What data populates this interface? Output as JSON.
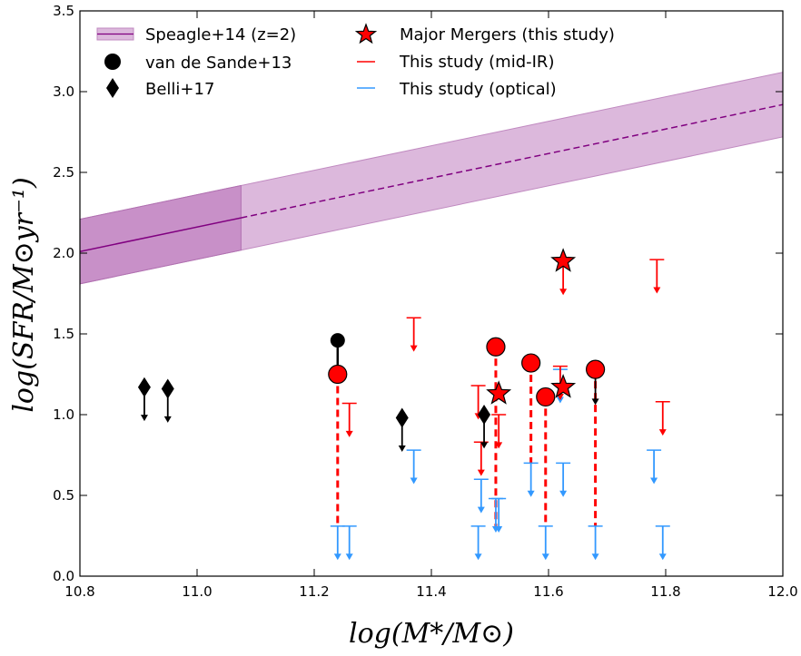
{
  "chart_data": {
    "type": "scatter",
    "title": "",
    "xlabel": "log(M*/M⊙)",
    "ylabel": "log(SFR/M⊙yr⁻¹)",
    "xlim": [
      10.8,
      12.0
    ],
    "ylim": [
      0.0,
      3.5
    ],
    "xticks": [
      "10.8",
      "11.0",
      "11.2",
      "11.4",
      "11.6",
      "11.8",
      "12.0"
    ],
    "yticks": [
      "0.0",
      "0.5",
      "1.0",
      "1.5",
      "2.0",
      "2.5",
      "3.0",
      "3.5"
    ],
    "grid": false,
    "legend_position": "top-left",
    "legend": [
      {
        "label": "Speagle+14 (z=2)",
        "marker": "band"
      },
      {
        "label": "van de Sande+13",
        "marker": "circle"
      },
      {
        "label": "Belli+17",
        "marker": "diamond"
      },
      {
        "label": "Major Mergers (this study)",
        "marker": "star"
      },
      {
        "label": "This study (mid-IR)",
        "marker": "red-line"
      },
      {
        "label": "This study (optical)",
        "marker": "blue-line"
      }
    ],
    "colors": {
      "main_sequence": "#800080",
      "band_light": "#dcb8dc",
      "band_dark": "#c890c8",
      "mid_ir": "#ff0000",
      "optical": "#3399ff",
      "marker_fill": "#ff0000",
      "black": "#000000"
    },
    "speagle_band": {
      "x": [
        10.8,
        12.0
      ],
      "center": [
        2.01,
        2.92
      ],
      "halfwidth": 0.2,
      "solid_until_x": 11.075
    },
    "belli17": [
      {
        "x": 10.91,
        "y": 1.17
      },
      {
        "x": 10.95,
        "y": 1.16
      },
      {
        "x": 11.35,
        "y": 0.98
      },
      {
        "x": 11.49,
        "y": 1.0
      }
    ],
    "van_de_sande13": [
      {
        "x": 11.24,
        "y": 1.46,
        "to": 1.25
      },
      {
        "x": 11.68,
        "y": 1.27,
        "to": 1.07
      }
    ],
    "this_study_circles": [
      {
        "x": 11.24,
        "y": 1.25,
        "dashed_to": 0.31
      },
      {
        "x": 11.51,
        "y": 1.42,
        "dashed_to": 0.31
      },
      {
        "x": 11.57,
        "y": 1.32,
        "dashed_to": 0.7
      },
      {
        "x": 11.595,
        "y": 1.11,
        "dashed_to": 0.31
      },
      {
        "x": 11.68,
        "y": 1.28,
        "dashed_to": 0.31
      }
    ],
    "major_mergers": [
      {
        "x": 11.515,
        "y": 1.13
      },
      {
        "x": 11.625,
        "y": 1.95
      },
      {
        "x": 11.625,
        "y": 1.17
      }
    ],
    "mid_ir_limits": [
      {
        "x": 11.26,
        "y": 1.07
      },
      {
        "x": 11.37,
        "y": 1.6
      },
      {
        "x": 11.48,
        "y": 1.18
      },
      {
        "x": 11.485,
        "y": 0.83
      },
      {
        "x": 11.515,
        "y": 1.0
      },
      {
        "x": 11.62,
        "y": 1.3
      },
      {
        "x": 11.625,
        "y": 1.95
      },
      {
        "x": 11.785,
        "y": 1.96
      },
      {
        "x": 11.795,
        "y": 1.08
      }
    ],
    "optical_limits": [
      {
        "x": 11.24,
        "y": 0.31
      },
      {
        "x": 11.26,
        "y": 0.31
      },
      {
        "x": 11.37,
        "y": 0.78
      },
      {
        "x": 11.48,
        "y": 0.31
      },
      {
        "x": 11.485,
        "y": 0.6
      },
      {
        "x": 11.51,
        "y": 0.48
      },
      {
        "x": 11.515,
        "y": 0.48
      },
      {
        "x": 11.57,
        "y": 0.7
      },
      {
        "x": 11.595,
        "y": 0.31
      },
      {
        "x": 11.62,
        "y": 1.28
      },
      {
        "x": 11.625,
        "y": 0.7
      },
      {
        "x": 11.68,
        "y": 0.31
      },
      {
        "x": 11.78,
        "y": 0.78
      },
      {
        "x": 11.795,
        "y": 0.31
      }
    ]
  }
}
